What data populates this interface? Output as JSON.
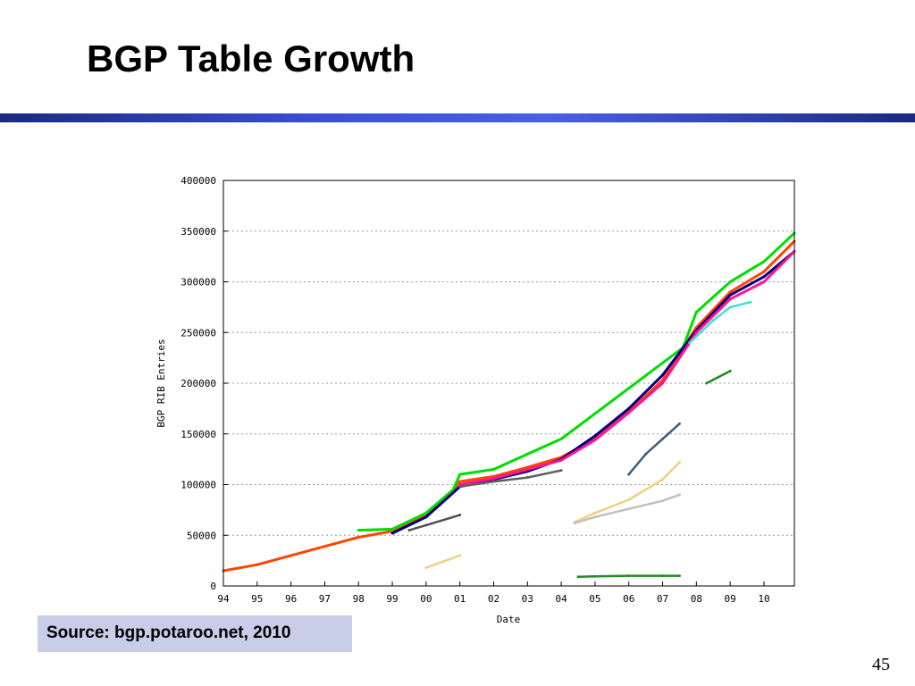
{
  "slide": {
    "title": "BGP Table Growth",
    "source": "Source: bgp.potaroo.net, 2010",
    "page_number": "45"
  },
  "colors": {
    "title_rule": "#2b3bb8",
    "source_box": "#c8cde8"
  },
  "chart_data": {
    "type": "scatter",
    "xlabel": "Date",
    "ylabel": "BGP RIB Entries",
    "xlim": [
      1994.0,
      2010.9
    ],
    "ylim": [
      0,
      400000
    ],
    "x_ticks": [
      {
        "label": "94",
        "value": 1994
      },
      {
        "label": "95",
        "value": 1995
      },
      {
        "label": "96",
        "value": 1996
      },
      {
        "label": "97",
        "value": 1997
      },
      {
        "label": "98",
        "value": 1998
      },
      {
        "label": "99",
        "value": 1999
      },
      {
        "label": "00",
        "value": 2000
      },
      {
        "label": "01",
        "value": 2001
      },
      {
        "label": "02",
        "value": 2002
      },
      {
        "label": "03",
        "value": 2003
      },
      {
        "label": "04",
        "value": 2004
      },
      {
        "label": "05",
        "value": 2005
      },
      {
        "label": "06",
        "value": 2006
      },
      {
        "label": "07",
        "value": 2007
      },
      {
        "label": "08",
        "value": 2008
      },
      {
        "label": "09",
        "value": 2009
      },
      {
        "label": "10",
        "value": 2010
      }
    ],
    "y_ticks": [
      {
        "label": "0",
        "value": 0
      },
      {
        "label": "50000",
        "value": 50000
      },
      {
        "label": "100000",
        "value": 100000
      },
      {
        "label": "150000",
        "value": 150000
      },
      {
        "label": "200000",
        "value": 200000
      },
      {
        "label": "250000",
        "value": 250000
      },
      {
        "label": "300000",
        "value": 300000
      },
      {
        "label": "350000",
        "value": 350000
      },
      {
        "label": "400000",
        "value": 400000
      }
    ],
    "grid": true,
    "series": [
      {
        "color": "#ff4500",
        "x": [
          1994.0,
          1995.0,
          1996.0,
          1997.0,
          1998.0,
          1999.0,
          2000.0,
          2000.7,
          2001.0,
          2002.0,
          2003.0,
          2004.0,
          2005.0,
          2006.0,
          2007.0,
          2008.0,
          2009.0,
          2010.0,
          2010.9
        ],
        "y": [
          15000,
          21000,
          30000,
          39000,
          48000,
          54000,
          70000,
          90000,
          103000,
          108000,
          117000,
          127000,
          145000,
          172000,
          203000,
          255000,
          290000,
          310000,
          340000
        ]
      },
      {
        "color": "#00dd00",
        "x": [
          1998.0,
          1999.0,
          2000.0,
          2000.8,
          2001.0,
          2002.0,
          2003.0,
          2004.0,
          2005.0,
          2006.0,
          2007.0,
          2007.6,
          2008.0,
          2009.0,
          2010.0,
          2010.9
        ],
        "y": [
          55000,
          56000,
          72000,
          95000,
          110000,
          115000,
          130000,
          145000,
          170000,
          195000,
          220000,
          235000,
          270000,
          300000,
          320000,
          348000
        ]
      },
      {
        "color": "#000080",
        "x": [
          1999.0,
          2000.0,
          2001.0,
          2002.0,
          2003.0,
          2004.0,
          2005.0,
          2006.0,
          2007.0,
          2008.0,
          2009.0,
          2010.0,
          2010.9
        ],
        "y": [
          52000,
          68000,
          98000,
          105000,
          113000,
          125000,
          148000,
          175000,
          208000,
          252000,
          287000,
          305000,
          330000
        ]
      },
      {
        "color": "#ff1493",
        "x": [
          2001.0,
          2002.0,
          2003.0,
          2004.0,
          2005.0,
          2006.0,
          2007.0,
          2008.0,
          2009.0,
          2010.0,
          2010.9
        ],
        "y": [
          100000,
          106000,
          115000,
          124000,
          144000,
          171000,
          200000,
          250000,
          283000,
          300000,
          330000
        ]
      },
      {
        "color": "#40e0d0",
        "x": [
          2007.8,
          2008.5,
          2009.0,
          2009.6
        ],
        "y": [
          240000,
          262000,
          275000,
          280000
        ]
      },
      {
        "color": "#f0d080",
        "x": [
          2000.0,
          2001.0
        ],
        "y": [
          18000,
          30000
        ]
      },
      {
        "color": "#f0d080",
        "x": [
          2004.4,
          2005.0,
          2006.0,
          2007.0,
          2007.5
        ],
        "y": [
          63000,
          72000,
          85000,
          105000,
          122000
        ]
      },
      {
        "color": "#c0c0c0",
        "x": [
          2004.4,
          2005.0,
          2006.0,
          2007.0,
          2007.5
        ],
        "y": [
          62000,
          68000,
          76000,
          84000,
          90000
        ]
      },
      {
        "color": "#3a6080",
        "x": [
          2006.0,
          2006.5,
          2007.0,
          2007.5
        ],
        "y": [
          110000,
          130000,
          145000,
          160000
        ]
      },
      {
        "color": "#228b22",
        "x": [
          2004.5,
          2005.0,
          2006.0,
          2007.0,
          2007.5
        ],
        "y": [
          9000,
          9500,
          10000,
          10000,
          10000
        ]
      },
      {
        "color": "#228b22",
        "x": [
          2008.3,
          2009.0
        ],
        "y": [
          200000,
          212000
        ]
      },
      {
        "color": "#505050",
        "x": [
          1999.5,
          2000.0,
          2001.0
        ],
        "y": [
          55000,
          60000,
          70000
        ]
      },
      {
        "color": "#606060",
        "x": [
          2001.0,
          2002.0,
          2003.0,
          2004.0
        ],
        "y": [
          98000,
          103000,
          107000,
          114000
        ]
      }
    ]
  }
}
